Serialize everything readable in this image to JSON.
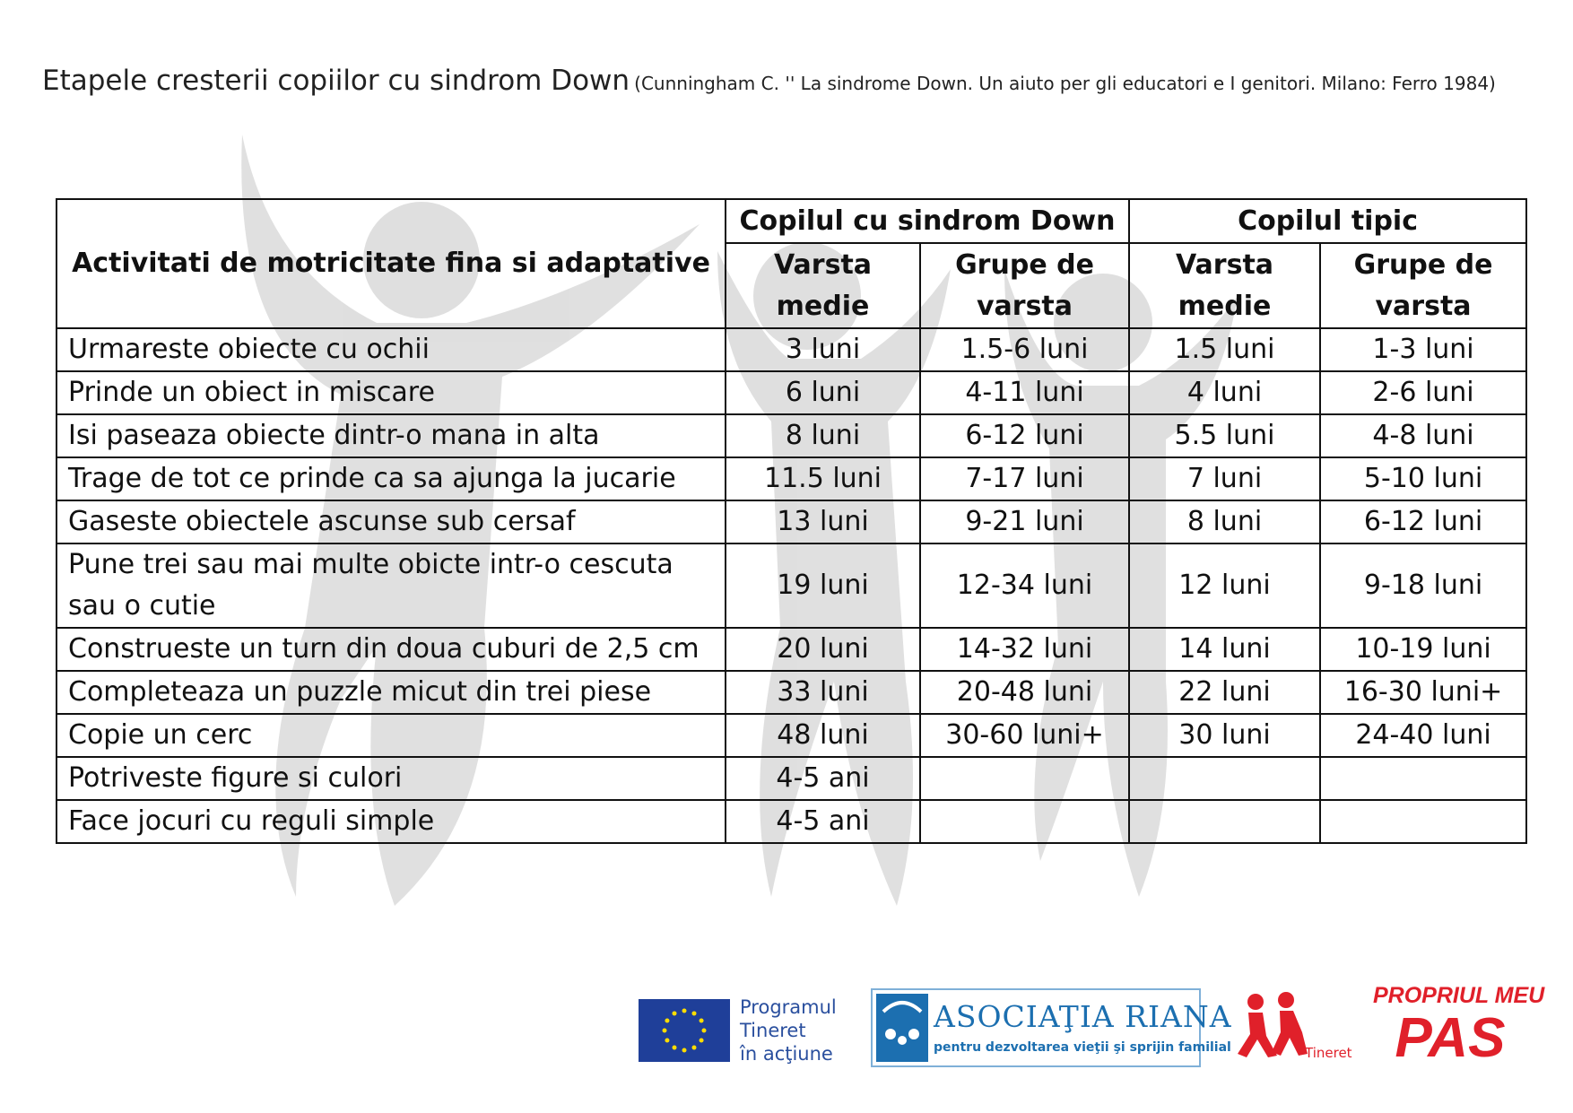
{
  "title": "Etapele cresterii copiilor cu sindrom Down",
  "citation": "(Cunningham C. '' La sindrome Down. Un aiuto per gli educatori e I genitori. Milano: Ferro 1984)",
  "table": {
    "header": {
      "activity": "Activitati de motricitate fina si adaptative",
      "groups": [
        {
          "name": "Copilul cu sindrom Down",
          "columns": [
            "Varsta medie",
            "Grupe de varsta"
          ]
        },
        {
          "name": "Copilul tipic",
          "columns": [
            "Varsta medie",
            "Grupe de varsta"
          ]
        }
      ]
    },
    "rows": [
      [
        "Urmareste obiecte cu ochii",
        "3 luni",
        "1.5-6 luni",
        "1.5 luni",
        "1-3 luni"
      ],
      [
        "Prinde un obiect in miscare",
        "6 luni",
        "4-11 luni",
        "4 luni",
        "2-6 luni"
      ],
      [
        "Isi paseaza obiecte dintr-o mana in alta",
        "8 luni",
        "6-12 luni",
        "5.5 luni",
        "4-8 luni"
      ],
      [
        "Trage de tot ce prinde ca sa ajunga la jucarie",
        "11.5 luni",
        "7-17 luni",
        "7 luni",
        "5-10 luni"
      ],
      [
        "Gaseste obiectele ascunse sub cersaf",
        "13 luni",
        "9-21 luni",
        "8 luni",
        "6-12 luni"
      ],
      [
        "Pune trei sau mai multe obicte intr-o cescuta sau o cutie",
        "19 luni",
        "12-34 luni",
        "12 luni",
        "9-18 luni"
      ],
      [
        "Construeste un turn din doua cuburi de 2,5 cm",
        "20 luni",
        "14-32 luni",
        "14 luni",
        "10-19 luni"
      ],
      [
        "Completeaza un puzzle micut din trei piese",
        "33 luni",
        "20-48 luni",
        "22 luni",
        "16-30 luni+"
      ],
      [
        "Copie un cerc",
        "48 luni",
        "30-60 luni+",
        "30 luni",
        "24-40 luni"
      ],
      [
        "Potriveste figure si culori",
        "4-5 ani"
      ],
      [
        "Face jocuri cu reguli simple",
        "4-5 ani"
      ]
    ]
  },
  "footer": {
    "program": [
      "Programul",
      "Tineret",
      "în acţiune"
    ],
    "association": "ASOCIAŢIA RIANA",
    "association_subtitle": "pentru dezvoltarea vieţii şi sprijin familial",
    "tineret": "Tineret",
    "campaign": [
      "PROPRIUL MEU",
      "PAS"
    ]
  }
}
